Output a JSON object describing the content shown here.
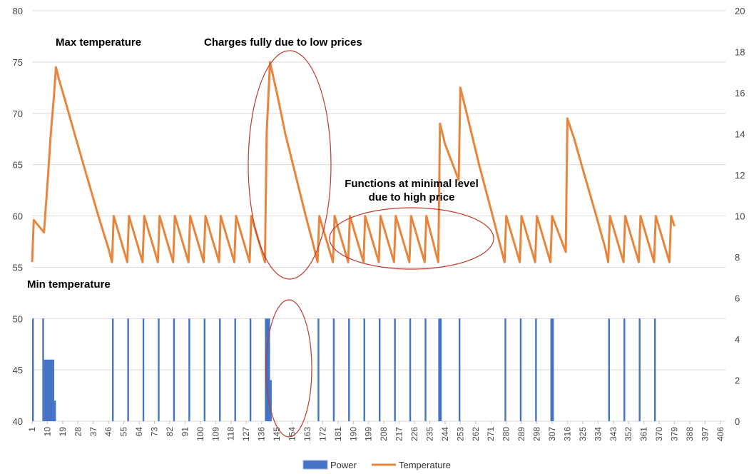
{
  "chart_data": {
    "type": "line",
    "x_categories": [
      1,
      10,
      19,
      28,
      37,
      46,
      55,
      64,
      73,
      82,
      91,
      100,
      109,
      118,
      127,
      136,
      145,
      154,
      163,
      172,
      181,
      190,
      199,
      208,
      217,
      226,
      235,
      244,
      253,
      262,
      271,
      280,
      289,
      298,
      307,
      316,
      325,
      334,
      343,
      352,
      361,
      370,
      379,
      388,
      397,
      406
    ],
    "x_range": [
      1,
      409
    ],
    "left_axis_ticks": [
      40,
      45,
      50,
      55,
      60,
      65,
      70,
      75,
      80
    ],
    "left_axis_range": [
      40,
      80
    ],
    "right_axis_ticks": [
      0,
      2,
      4,
      6,
      8,
      10,
      12,
      14,
      16,
      18,
      20
    ],
    "right_axis_range": [
      0,
      20
    ],
    "grid": "horizontal",
    "legend_position": "bottom",
    "series": [
      {
        "name": "Temperature",
        "type": "line",
        "axis": "left",
        "color": "#E8853D",
        "points": [
          [
            1,
            55.5
          ],
          [
            2,
            59.6
          ],
          [
            7,
            58.6
          ],
          [
            8,
            58.4
          ],
          [
            10,
            63
          ],
          [
            12,
            68
          ],
          [
            14,
            72
          ],
          [
            15,
            74.5
          ],
          [
            17,
            73.2
          ],
          [
            20,
            71.5
          ],
          [
            26,
            68
          ],
          [
            33,
            64
          ],
          [
            40,
            60
          ],
          [
            46,
            56.8
          ],
          [
            48,
            55.5
          ],
          [
            49,
            60
          ],
          [
            57,
            55.5
          ],
          [
            58,
            60
          ],
          [
            66,
            55.5
          ],
          [
            67,
            60
          ],
          [
            75,
            55.5
          ],
          [
            76,
            60
          ],
          [
            84,
            55.5
          ],
          [
            85,
            60
          ],
          [
            93,
            55.5
          ],
          [
            94,
            60
          ],
          [
            102,
            55.5
          ],
          [
            103,
            60
          ],
          [
            111,
            55.5
          ],
          [
            112,
            60
          ],
          [
            120,
            55.5
          ],
          [
            121,
            60
          ],
          [
            129,
            55.5
          ],
          [
            130,
            60
          ],
          [
            138,
            55.5
          ],
          [
            139,
            68
          ],
          [
            141,
            75
          ],
          [
            145,
            72
          ],
          [
            150,
            68
          ],
          [
            156,
            64
          ],
          [
            162,
            60
          ],
          [
            166,
            57.5
          ],
          [
            169,
            55.5
          ],
          [
            170,
            60
          ],
          [
            178,
            55.5
          ],
          [
            179,
            60
          ],
          [
            187,
            55.5
          ],
          [
            188,
            60
          ],
          [
            196,
            55.5
          ],
          [
            197,
            60
          ],
          [
            205,
            55.5
          ],
          [
            206,
            60
          ],
          [
            214,
            55.5
          ],
          [
            215,
            60
          ],
          [
            223,
            55.5
          ],
          [
            224,
            60
          ],
          [
            232,
            55.5
          ],
          [
            233,
            60
          ],
          [
            240,
            55.5
          ],
          [
            241,
            69
          ],
          [
            244,
            67
          ],
          [
            252,
            63.5
          ],
          [
            253,
            72.5
          ],
          [
            256,
            70.5
          ],
          [
            264,
            65
          ],
          [
            272,
            60
          ],
          [
            277,
            56.8
          ],
          [
            279,
            55.5
          ],
          [
            280,
            60
          ],
          [
            288,
            55.5
          ],
          [
            289,
            60
          ],
          [
            297,
            55.5
          ],
          [
            298,
            60
          ],
          [
            306,
            55.5
          ],
          [
            307,
            60
          ],
          [
            315,
            56.5
          ],
          [
            316,
            69.5
          ],
          [
            320,
            67.5
          ],
          [
            326,
            64
          ],
          [
            333,
            60
          ],
          [
            338,
            57
          ],
          [
            340,
            55.5
          ],
          [
            341,
            60
          ],
          [
            349,
            55.5
          ],
          [
            350,
            60
          ],
          [
            358,
            55.5
          ],
          [
            359,
            60
          ],
          [
            367,
            55.5
          ],
          [
            368,
            60
          ],
          [
            376,
            55.5
          ],
          [
            377,
            60
          ],
          [
            379,
            59
          ]
        ]
      },
      {
        "name": "Power",
        "type": "bar",
        "axis": "right",
        "color": "#4472C4",
        "bars": [
          [
            1,
            2,
            5
          ],
          [
            7,
            8,
            5
          ],
          [
            8,
            14,
            3
          ],
          [
            14,
            15,
            1
          ],
          [
            48,
            49,
            5
          ],
          [
            57,
            58,
            5
          ],
          [
            66,
            67,
            5
          ],
          [
            75,
            76,
            5
          ],
          [
            84,
            85,
            5
          ],
          [
            93,
            94,
            5
          ],
          [
            102,
            103,
            5
          ],
          [
            111,
            112,
            5
          ],
          [
            120,
            121,
            5
          ],
          [
            129,
            130,
            5
          ],
          [
            138,
            141,
            5
          ],
          [
            141,
            142,
            2
          ],
          [
            169,
            170,
            5
          ],
          [
            178,
            179,
            5
          ],
          [
            187,
            188,
            5
          ],
          [
            196,
            197,
            5
          ],
          [
            205,
            206,
            5
          ],
          [
            214,
            215,
            5
          ],
          [
            223,
            224,
            5
          ],
          [
            232,
            233,
            5
          ],
          [
            240,
            242,
            5
          ],
          [
            252,
            253,
            5
          ],
          [
            279,
            280,
            5
          ],
          [
            288,
            289,
            5
          ],
          [
            297,
            298,
            5
          ],
          [
            306,
            308,
            5
          ],
          [
            340,
            341,
            5
          ],
          [
            349,
            350,
            5
          ],
          [
            358,
            359,
            5
          ],
          [
            367,
            368,
            5
          ]
        ]
      }
    ],
    "annotations": {
      "max_temperature": "Max temperature",
      "charges_fully": "Charges fully due to low prices",
      "functions_minimal_line1": "Functions at minimal level",
      "functions_minimal_line2": "due to high price",
      "min_temperature": "Min temperature"
    },
    "annotation_color": "#C0392B",
    "grid_color": "#D9D9D9"
  }
}
